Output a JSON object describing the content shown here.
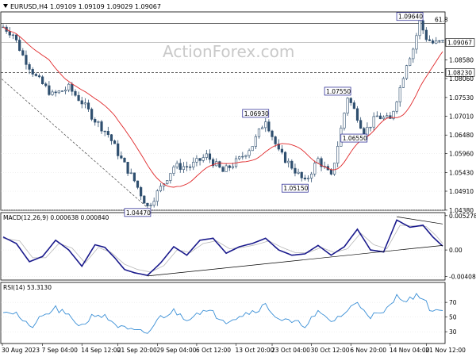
{
  "chart_data": {
    "type": "candlestick",
    "header": {
      "symbol": "EURUSD,H4",
      "ohlc": "1.09109 1.09109 1.09029 1.09067"
    },
    "watermark": "ActionForex.com",
    "fib_label": "61.8",
    "price_panel": {
      "ylim": [
        1.044,
        1.099
      ],
      "y_ticks": [
        "1.08580",
        "1.08060",
        "1.07530",
        "1.07010",
        "1.06480",
        "1.05960",
        "1.05430",
        "1.04910",
        "1.04380"
      ],
      "tick_values": [
        1.0858,
        1.0806,
        1.0753,
        1.0701,
        1.0648,
        1.0596,
        1.0543,
        1.0491,
        1.0438
      ],
      "current_price": {
        "label": "1.09067",
        "value": 1.09067
      },
      "support_level": {
        "label": "1.08230",
        "value": 1.0823
      },
      "fib_level": 1.096,
      "swing_labels": [
        {
          "text": "1.04470",
          "bar": 44,
          "value": 1.0447
        },
        {
          "text": "1.06930",
          "bar": 80,
          "value": 1.0693
        },
        {
          "text": "1.05150",
          "bar": 92,
          "value": 1.0515
        },
        {
          "text": "1.07550",
          "bar": 105,
          "value": 1.0755
        },
        {
          "text": "1.06550",
          "bar": 110,
          "value": 1.0655
        },
        {
          "text": "1.09640",
          "bar": 127,
          "value": 1.0964
        }
      ],
      "anchors": [
        [
          0,
          1.095
        ],
        [
          3,
          1.093
        ],
        [
          6,
          1.087
        ],
        [
          10,
          1.081
        ],
        [
          15,
          1.076
        ],
        [
          20,
          1.078
        ],
        [
          24,
          1.074
        ],
        [
          28,
          1.069
        ],
        [
          32,
          1.065
        ],
        [
          36,
          1.058
        ],
        [
          40,
          1.052
        ],
        [
          44,
          1.0447
        ],
        [
          48,
          1.05
        ],
        [
          52,
          1.056
        ],
        [
          57,
          1.056
        ],
        [
          62,
          1.059
        ],
        [
          67,
          1.0545
        ],
        [
          72,
          1.058
        ],
        [
          76,
          1.062
        ],
        [
          80,
          1.0693
        ],
        [
          84,
          1.06
        ],
        [
          88,
          1.056
        ],
        [
          92,
          1.0515
        ],
        [
          96,
          1.058
        ],
        [
          100,
          1.053
        ],
        [
          105,
          1.0755
        ],
        [
          108,
          1.07
        ],
        [
          110,
          1.0655
        ],
        [
          114,
          1.07
        ],
        [
          118,
          1.069
        ],
        [
          121,
          1.078
        ],
        [
          123,
          1.085
        ],
        [
          125,
          1.089
        ],
        [
          127,
          1.0964
        ],
        [
          129,
          1.092
        ],
        [
          131,
          1.0905
        ],
        [
          134,
          1.0907
        ]
      ]
    },
    "macd_panel": {
      "label": "MACD(12,26,9) 0.000638 0.000840",
      "ylim": [
        -0.0045,
        0.0055
      ],
      "y_ticks": [
        "0.005278",
        "0.00",
        "-0.004087"
      ],
      "tick_values": [
        0.005278,
        0.0,
        -0.004087
      ],
      "macd_anchors": [
        [
          0,
          0.002
        ],
        [
          4,
          0.001
        ],
        [
          8,
          -0.0018
        ],
        [
          12,
          -0.001
        ],
        [
          16,
          0.0015
        ],
        [
          20,
          0.0
        ],
        [
          24,
          -0.0025
        ],
        [
          28,
          0.0008
        ],
        [
          31,
          0.0004
        ],
        [
          34,
          -0.0012
        ],
        [
          37,
          -0.003
        ],
        [
          40,
          -0.0035
        ],
        [
          44,
          -0.0039
        ],
        [
          48,
          -0.002
        ],
        [
          52,
          0.0005
        ],
        [
          56,
          -0.0008
        ],
        [
          60,
          0.0015
        ],
        [
          64,
          0.0018
        ],
        [
          68,
          -0.0005
        ],
        [
          72,
          0.0005
        ],
        [
          76,
          0.001
        ],
        [
          80,
          0.0018
        ],
        [
          84,
          0.0
        ],
        [
          88,
          -0.0008
        ],
        [
          92,
          -0.0006
        ],
        [
          96,
          0.0007
        ],
        [
          100,
          -0.0008
        ],
        [
          104,
          0.0005
        ],
        [
          108,
          0.0032
        ],
        [
          112,
          0.0
        ],
        [
          116,
          -0.0003
        ],
        [
          120,
          0.0046
        ],
        [
          124,
          0.0035
        ],
        [
          128,
          0.0038
        ],
        [
          131,
          0.002
        ],
        [
          134,
          0.0006
        ]
      ],
      "signal_anchors": [
        [
          0,
          0.0018
        ],
        [
          5,
          0.0014
        ],
        [
          9,
          -0.0012
        ],
        [
          13,
          -0.0012
        ],
        [
          17,
          0.001
        ],
        [
          21,
          0.0003
        ],
        [
          25,
          -0.002
        ],
        [
          29,
          0.0004
        ],
        [
          33,
          -0.0004
        ],
        [
          37,
          -0.0022
        ],
        [
          41,
          -0.003
        ],
        [
          45,
          -0.0034
        ],
        [
          49,
          -0.0024
        ],
        [
          53,
          0.0
        ],
        [
          57,
          -0.0004
        ],
        [
          61,
          0.001
        ],
        [
          65,
          0.0014
        ],
        [
          69,
          0.0002
        ],
        [
          73,
          0.0004
        ],
        [
          77,
          0.0008
        ],
        [
          81,
          0.0014
        ],
        [
          85,
          0.0004
        ],
        [
          89,
          -0.0004
        ],
        [
          93,
          -0.0004
        ],
        [
          97,
          0.0004
        ],
        [
          101,
          -0.0004
        ],
        [
          105,
          0.0002
        ],
        [
          109,
          0.0026
        ],
        [
          113,
          0.0008
        ],
        [
          117,
          0.0002
        ],
        [
          121,
          0.0038
        ],
        [
          125,
          0.0037
        ],
        [
          129,
          0.0036
        ],
        [
          132,
          0.0022
        ],
        [
          134,
          0.001
        ]
      ]
    },
    "rsi_panel": {
      "label": "RSI(14) 53.3130",
      "ylim": [
        15,
        95
      ],
      "y_ticks": [
        "70",
        "50",
        "30"
      ],
      "tick_values": [
        70,
        50,
        30
      ],
      "anchors": [
        [
          0,
          60
        ],
        [
          4,
          55
        ],
        [
          8,
          35
        ],
        [
          12,
          50
        ],
        [
          16,
          62
        ],
        [
          20,
          50
        ],
        [
          24,
          38
        ],
        [
          28,
          55
        ],
        [
          32,
          48
        ],
        [
          36,
          35
        ],
        [
          40,
          30
        ],
        [
          44,
          28
        ],
        [
          48,
          50
        ],
        [
          52,
          58
        ],
        [
          56,
          48
        ],
        [
          60,
          58
        ],
        [
          64,
          55
        ],
        [
          68,
          45
        ],
        [
          72,
          52
        ],
        [
          76,
          58
        ],
        [
          80,
          66
        ],
        [
          84,
          48
        ],
        [
          88,
          42
        ],
        [
          92,
          40
        ],
        [
          96,
          55
        ],
        [
          100,
          44
        ],
        [
          104,
          55
        ],
        [
          108,
          70
        ],
        [
          112,
          52
        ],
        [
          116,
          54
        ],
        [
          120,
          78
        ],
        [
          124,
          74
        ],
        [
          127,
          80
        ],
        [
          130,
          62
        ],
        [
          134,
          58
        ]
      ]
    },
    "x_labels": [
      "30 Aug 2023",
      "7 Sep 04:00",
      "14 Sep 12:00",
      "21 Sep 20:00",
      "29 Sep 04:00",
      "6 Oct 12:00",
      "13 Oct 20:00",
      "23 Oct 04:00",
      "30 Oct 12:00",
      "6 Nov 20:00",
      "14 Nov 04:00",
      "21 Nov 12:00"
    ],
    "colors": {
      "candle": "#2f4f6f",
      "ma": "#e0282a",
      "macd": "#1a1a8c",
      "signal": "#b8b8b8",
      "rsi": "#3a8fd6",
      "trendline": "#000000",
      "grid": "#d8d8d8"
    }
  }
}
